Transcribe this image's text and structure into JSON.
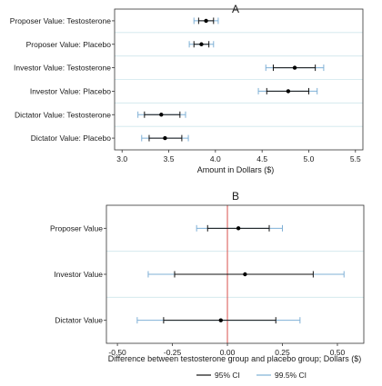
{
  "chart_data": [
    {
      "type": "forest",
      "panel_label": "A",
      "categories": [
        "Proposer Value: Testosterone",
        "Proposer Value: Placebo",
        "Investor Value: Testosterone",
        "Investor Value: Placebo",
        "Dictator Value: Testosterone",
        "Dictator Value: Placebo"
      ],
      "estimates": [
        3.9,
        3.85,
        4.85,
        4.78,
        3.42,
        3.46
      ],
      "ci95": [
        [
          3.82,
          3.98
        ],
        [
          3.77,
          3.93
        ],
        [
          4.62,
          5.07
        ],
        [
          4.55,
          5.0
        ],
        [
          3.24,
          3.62
        ],
        [
          3.29,
          3.64
        ]
      ],
      "ci995": [
        [
          3.77,
          4.03
        ],
        [
          3.72,
          3.98
        ],
        [
          4.54,
          5.16
        ],
        [
          4.46,
          5.09
        ],
        [
          3.17,
          3.68
        ],
        [
          3.21,
          3.71
        ]
      ],
      "xlabel": "Amount in Dollars ($)",
      "xlim": [
        2.92,
        5.58
      ],
      "xticks": [
        "3.0",
        "3.5",
        "4.0",
        "4.5",
        "5.0",
        "5.5"
      ],
      "grid": true
    },
    {
      "type": "forest",
      "panel_label": "B",
      "categories": [
        "Proposer Value",
        "Investor Value",
        "Dictator Value"
      ],
      "estimates": [
        0.05,
        0.08,
        -0.03
      ],
      "ci95": [
        [
          -0.09,
          0.19
        ],
        [
          -0.24,
          0.39
        ],
        [
          -0.29,
          0.22
        ]
      ],
      "ci995": [
        [
          -0.14,
          0.25
        ],
        [
          -0.36,
          0.53
        ],
        [
          -0.41,
          0.33
        ]
      ],
      "xlabel": "Difference between testosterone group and placebo group; Dollars ($)",
      "xlim": [
        -0.55,
        0.62
      ],
      "xticks": [
        "-0.50",
        "-0.25",
        "0.00",
        "0.25",
        "0.50"
      ],
      "reference_line": 0,
      "reference_color": "#d9534f",
      "grid": true
    }
  ],
  "legend": {
    "items": [
      "95% CI",
      "99.5% CI"
    ],
    "colors": [
      "#111111",
      "#7fb0d6"
    ],
    "placement": "bottom"
  }
}
